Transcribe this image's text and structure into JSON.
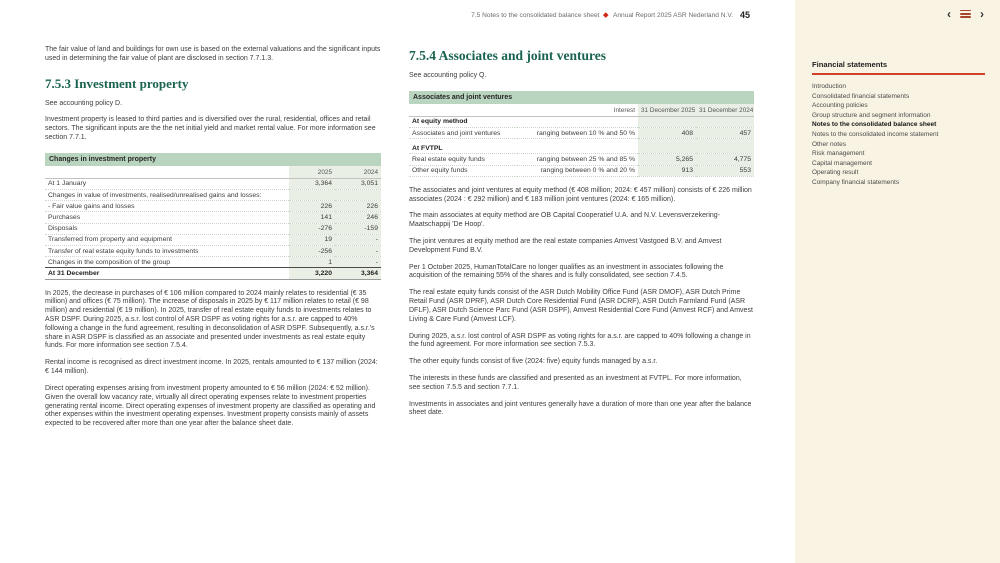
{
  "header": {
    "breadcrumb": "7.5 Notes to the consolidated balance sheet",
    "report": "Annual Report 2025 ASR Nederland N.V.",
    "page": "45"
  },
  "nav": {
    "prev_glyph": "‹",
    "next_glyph": "›"
  },
  "colors": {
    "accent_red": "#cf2a1b",
    "heading_teal": "#1a6351",
    "table_header_green": "#b9d4bf",
    "table_cell_green": "#e9efe4",
    "sidebar_cream": "#f8f3e3"
  },
  "left": {
    "intro": "The fair value of land and buildings for own use is based on the external valuations and the significant inputs used in determining the fair value of plant are disclosed in section 7.7.1.3.",
    "section_title": "7.5.3 Investment property",
    "policy": "See accounting policy D.",
    "para1": "Investment property is leased to third parties and is diversified over the rural, residential, offices and retail sectors. The significant inputs are the the net initial yield and market rental value. For more information see section 7.7.1.",
    "table": {
      "title": "Changes in investment property",
      "col_2025": "2025",
      "col_2024": "2024",
      "rows": [
        {
          "label": "At 1 January",
          "v2025": "3,364",
          "v2024": "3,051"
        },
        {
          "label": "Changes in value of investments, realised/unrealised gains and losses:",
          "v2025": "",
          "v2024": ""
        },
        {
          "label": "- Fair value gains and losses",
          "v2025": "226",
          "v2024": "226"
        },
        {
          "label": "Purchases",
          "v2025": "141",
          "v2024": "246"
        },
        {
          "label": "Disposals",
          "v2025": "-276",
          "v2024": "-159"
        },
        {
          "label": "Transferred from property and equipment",
          "v2025": "19",
          "v2024": "-"
        },
        {
          "label": "Transfer of real estate equity funds to investments",
          "v2025": "-256",
          "v2024": "-"
        },
        {
          "label": "Changes in the composition of the group",
          "v2025": "1",
          "v2024": "-"
        }
      ],
      "total": {
        "label": "At 31 December",
        "v2025": "3,220",
        "v2024": "3,364"
      }
    },
    "para2": "In 2025, the decrease in purchases of € 106 million compared to 2024 mainly relates to residential (€ 35 million) and offices (€ 75 million). The increase of disposals in 2025 by € 117 million relates to retail (€ 98 million) and residential (€ 19 million). In 2025, transfer of real estate equity funds to investments relates to ASR DSPF. During 2025, a.s.r. lost control of ASR DSPF as voting rights for a.s.r. are capped to 40% following a change in the fund agreement, resulting in deconsolidation of ASR DSPF. Subsequently, a.s.r.'s share in ASR DSPF is classified as an associate and presented under investments as real estate equity funds. For more information see section 7.5.4.",
    "para3": "Rental income is recognised as direct investment income. In 2025, rentals amounted to € 137 million (2024: € 144 million).",
    "para4": "Direct operating expenses arising from investment property amounted to € 56 million (2024: € 52 million). Given the overall low vacancy rate, virtually all direct operating expenses relate to investment properties generating rental income. Direct operating expenses of investment property are classified as operating and other expenses within the investment operating expenses. Investment property consists mainly of assets expected to be recovered after more than one year after the balance sheet date."
  },
  "middle": {
    "section_title": "7.5.4 Associates and joint ventures",
    "policy": "See accounting policy Q.",
    "table": {
      "title": "Associates and joint ventures",
      "col_interest": "Interest",
      "col_2025": "31 December 2025",
      "col_2024": "31 December 2024",
      "group1": "At equity method",
      "group2": "At FVTPL",
      "rows_g1": [
        {
          "label": "Associates and joint ventures",
          "interest": "ranging between 10 % and 50 %",
          "v2025": "408",
          "v2024": "457"
        }
      ],
      "rows_g2": [
        {
          "label": "Real estate equity funds",
          "interest": "ranging between 25 % and 85 %",
          "v2025": "5,265",
          "v2024": "4,775"
        },
        {
          "label": "Other equity funds",
          "interest": "ranging between 0 % and 20 %",
          "v2025": "913",
          "v2024": "553"
        }
      ]
    },
    "paragraphs": [
      "The associates and joint ventures at equity method (€ 408 million; 2024: € 457 million) consists of € 226 million associates (2024 : € 292 million) and € 183 million joint ventures (2024: € 165 million).",
      "The main associates at equity method are OB Capital Cooperatief U.A. and N.V. Levensverzekering-Maatschappij 'De Hoop'.",
      "The joint ventures at equity method are the real estate companies Amvest Vastgoed B.V. and Amvest Development Fund B.V.",
      "Per 1 October 2025, HumanTotalCare no longer qualifies as an investment in associates following the acquisition of the remaining 55% of the shares and is fully consolidated, see section 7.4.5.",
      "The real estate equity funds consist of the ASR Dutch Mobility Office Fund (ASR DMOF), ASR Dutch Prime Retail Fund (ASR DPRF), ASR Dutch Core Residential Fund (ASR DCRF), ASR Dutch Farmland Fund (ASR DFLF), ASR Dutch Science Parc Fund (ASR DSPF), Amvest Residential Core Fund (Amvest RCF) and Amvest Living & Care Fund (Amvest LCF).",
      "During 2025, a.s.r. lost control of ASR DSPF as voting rights for a.s.r. are capped to 40% following a change in the fund agreement. For more information see section 7.5.3.",
      "The other equity funds consist of five (2024: five) equity funds managed by a.s.r.",
      "The interests in these funds are classified and presented as an investment at FVTPL. For more information, see section 7.5.5 and section 7.7.1.",
      "Investments in associates and joint ventures generally have a duration of more than one year after the balance sheet date."
    ]
  },
  "sidebar": {
    "title": "Financial statements",
    "items": [
      {
        "label": "Introduction"
      },
      {
        "label": "Consolidated financial statements"
      },
      {
        "label": "Accounting policies"
      },
      {
        "label": "Group structure and segment information"
      },
      {
        "label": "Notes to the consolidated balance sheet"
      },
      {
        "label": "Notes to the consolidated income statement"
      },
      {
        "label": "Other notes"
      },
      {
        "label": "Risk management"
      },
      {
        "label": "Capital management"
      },
      {
        "label": "Operating result"
      },
      {
        "label": "Company financial statements"
      }
    ]
  }
}
